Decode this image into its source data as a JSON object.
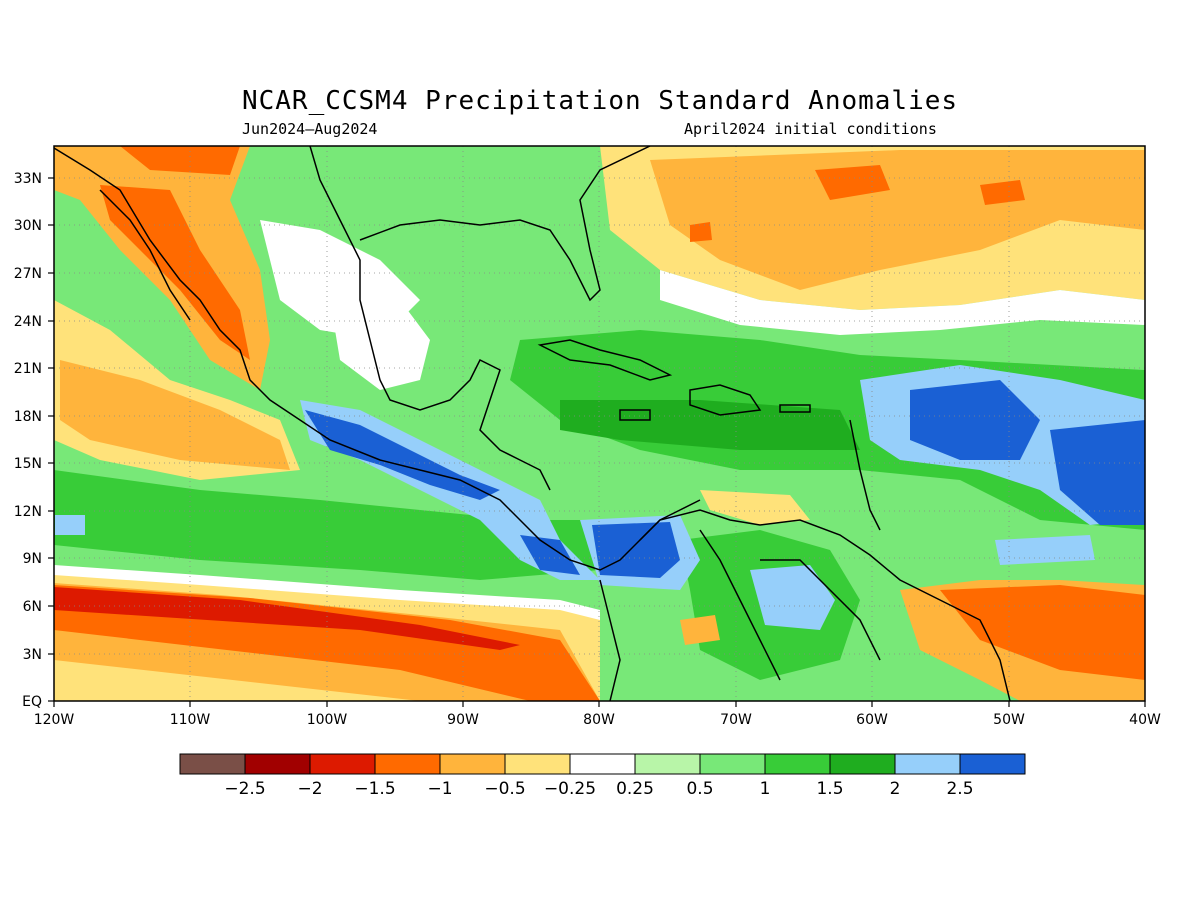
{
  "title": "NCAR_CCSM4 Precipitation Standard Anomalies",
  "subtitle_left": "Jun2024–Aug2024",
  "subtitle_right": "April2024 initial conditions",
  "map": {
    "lat_labels": [
      "33N",
      "30N",
      "27N",
      "24N",
      "21N",
      "18N",
      "15N",
      "12N",
      "9N",
      "6N",
      "3N",
      "EQ"
    ],
    "lon_labels": [
      "120W",
      "110W",
      "100W",
      "90W",
      "80W",
      "70W",
      "60W",
      "50W",
      "40W"
    ],
    "lat_range": [
      0,
      35
    ],
    "lon_range": [
      -120,
      -40
    ],
    "grid": "dotted"
  },
  "legend": {
    "colors": [
      "#7a4f47",
      "#a10000",
      "#dd1a00",
      "#ff6a00",
      "#ffb43c",
      "#ffe27a",
      "#ffffff",
      "#b8f5a8",
      "#78e878",
      "#38cc38",
      "#1fad1f",
      "#96cffa",
      "#1a60d4"
    ],
    "labels": [
      "−2.5",
      "−2",
      "−1.5",
      "−1",
      "−0.5",
      "−0.25",
      "0.25",
      "0.5",
      "1",
      "1.5",
      "2",
      "2.5"
    ]
  }
}
